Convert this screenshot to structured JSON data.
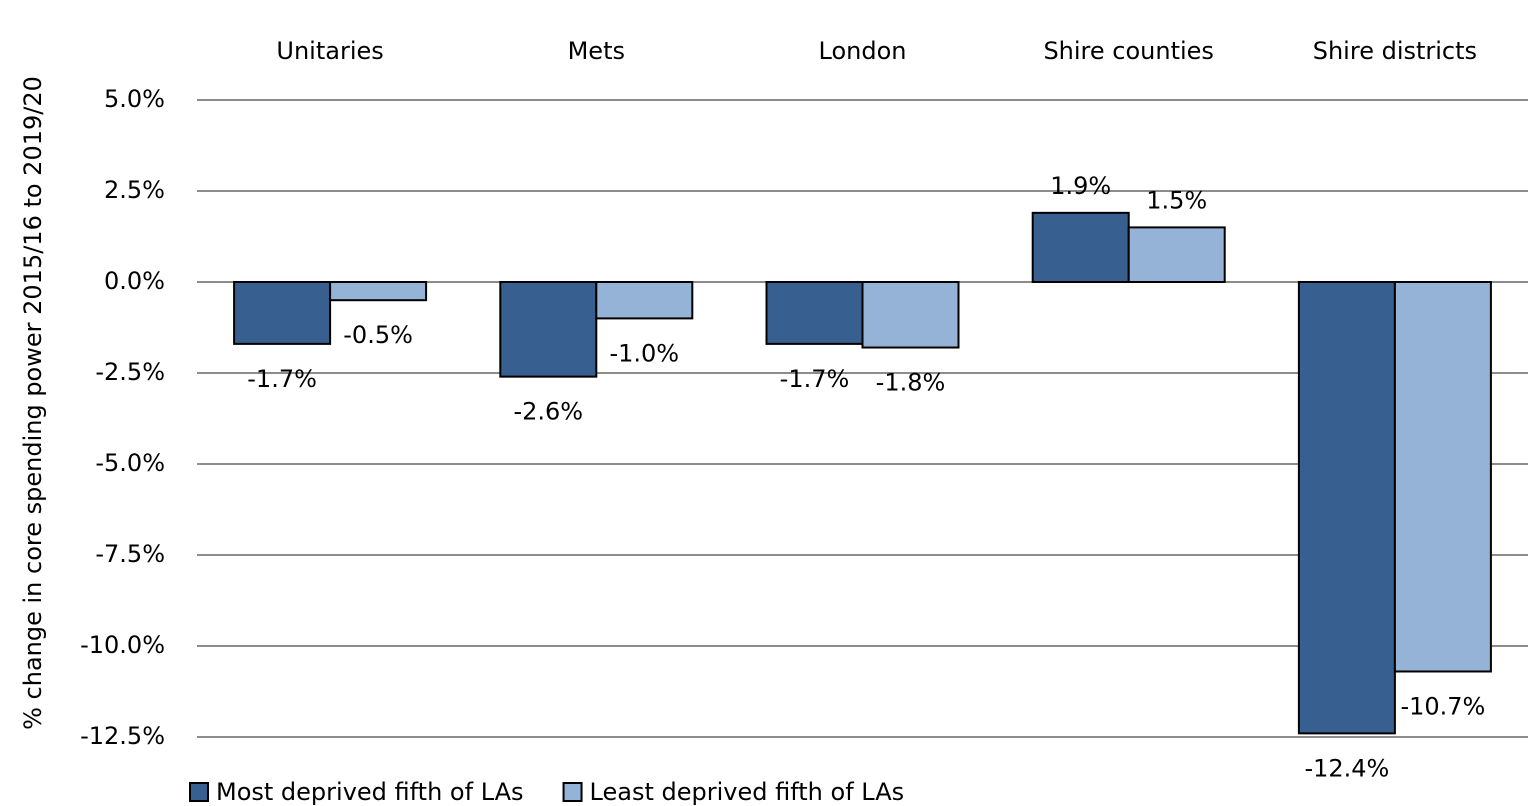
{
  "chart_data": {
    "type": "bar",
    "y_axis_label": "% change in core spending power 2015/16 to 2019/20",
    "categories": [
      "Unitaries",
      "Mets",
      "London",
      "Shire counties",
      "Shire districts"
    ],
    "series": [
      {
        "name": "Most deprived fifth of LAs",
        "color": "#375f8f",
        "values": [
          -1.7,
          -2.6,
          -1.7,
          1.9,
          -12.4
        ],
        "value_labels": [
          "-1.7%",
          "-2.6%",
          "-1.7%",
          "1.9%",
          "-12.4%"
        ]
      },
      {
        "name": "Least deprived fifth of LAs",
        "color": "#95b3d7",
        "values": [
          -0.5,
          -1.0,
          -1.8,
          1.5,
          -10.7
        ],
        "value_labels": [
          "-0.5%",
          "-1.0%",
          "-1.8%",
          "1.5%",
          "-10.7%"
        ]
      }
    ],
    "ylim": [
      -12.5,
      5
    ],
    "yticks": [
      {
        "value": 5,
        "label": "5.0%"
      },
      {
        "value": 2.5,
        "label": "2.5%"
      },
      {
        "value": 0,
        "label": "0.0%"
      },
      {
        "value": -2.5,
        "label": "-2.5%"
      },
      {
        "value": -5,
        "label": "-5.0%"
      },
      {
        "value": -7.5,
        "label": "-7.5%"
      },
      {
        "value": -10,
        "label": "-10.0%"
      },
      {
        "value": -12.5,
        "label": "-12.5%"
      }
    ],
    "grid": true,
    "legend": "bottom-left"
  }
}
